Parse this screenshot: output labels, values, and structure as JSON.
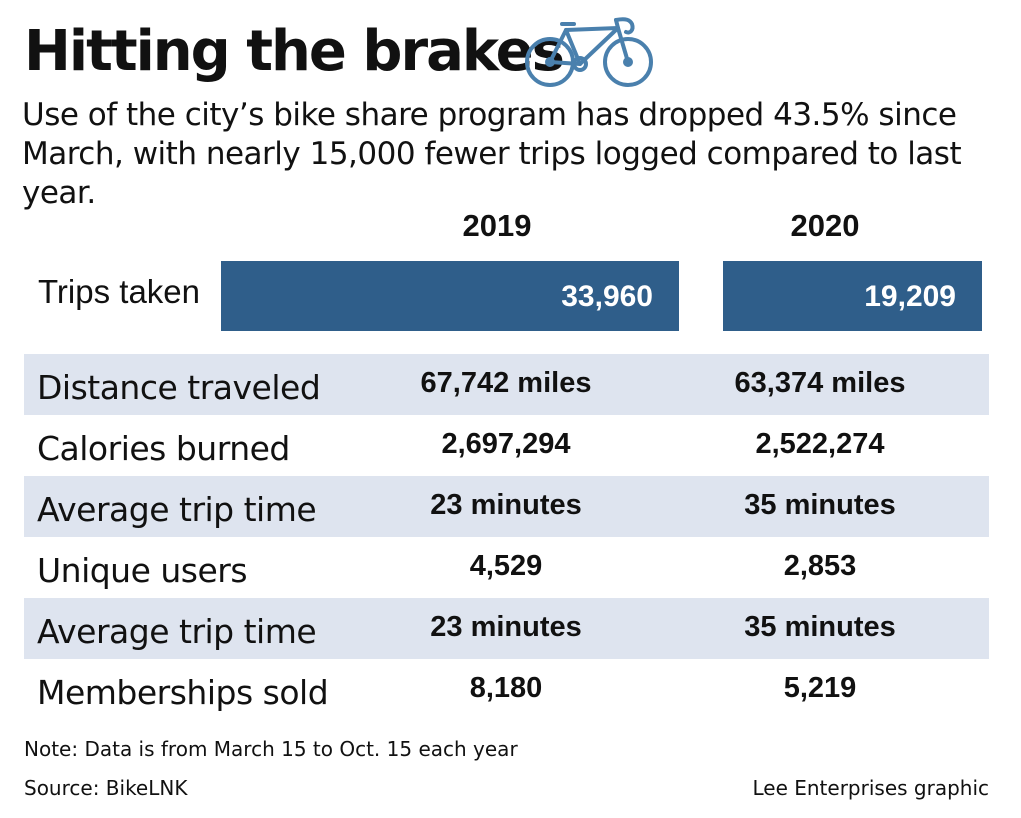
{
  "title": "Hitting the brakes",
  "subtitle": "Use of the city’s bike share program has dropped 43.5% since March, with nearly 15,000 fewer trips logged compared to last year.",
  "icons": {
    "header": "bicycle-icon"
  },
  "colors": {
    "bar": "#2f5e8a",
    "row_shade": "#dee4ef",
    "text": "#111111"
  },
  "chart_data": {
    "type": "bar",
    "categories": [
      "2019",
      "2020"
    ],
    "row_label": "Trips taken",
    "values": [
      33960,
      19209
    ],
    "value_labels": [
      "33,960",
      "19,209"
    ],
    "bar_scale_max": 33960
  },
  "table": {
    "columns": [
      "2019",
      "2020"
    ],
    "rows": [
      {
        "label": "Distance traveled",
        "v2019": "67,742 miles",
        "v2020": "63,374 miles",
        "shaded": true
      },
      {
        "label": "Calories burned",
        "v2019": "2,697,294",
        "v2020": "2,522,274",
        "shaded": false
      },
      {
        "label": "Average trip time",
        "v2019": "23 minutes",
        "v2020": "35 minutes",
        "shaded": true
      },
      {
        "label": "Unique users",
        "v2019": "4,529",
        "v2020": "2,853",
        "shaded": false
      },
      {
        "label": "Average trip time",
        "v2019": "23 minutes",
        "v2020": "35 minutes",
        "shaded": true
      },
      {
        "label": "Memberships sold",
        "v2019": "8,180",
        "v2020": "5,219",
        "shaded": false
      }
    ]
  },
  "footer": {
    "note": "Note: Data is from March 15 to Oct. 15 each year",
    "source": "Source: BikeLNK",
    "credit": "Lee Enterprises graphic"
  }
}
